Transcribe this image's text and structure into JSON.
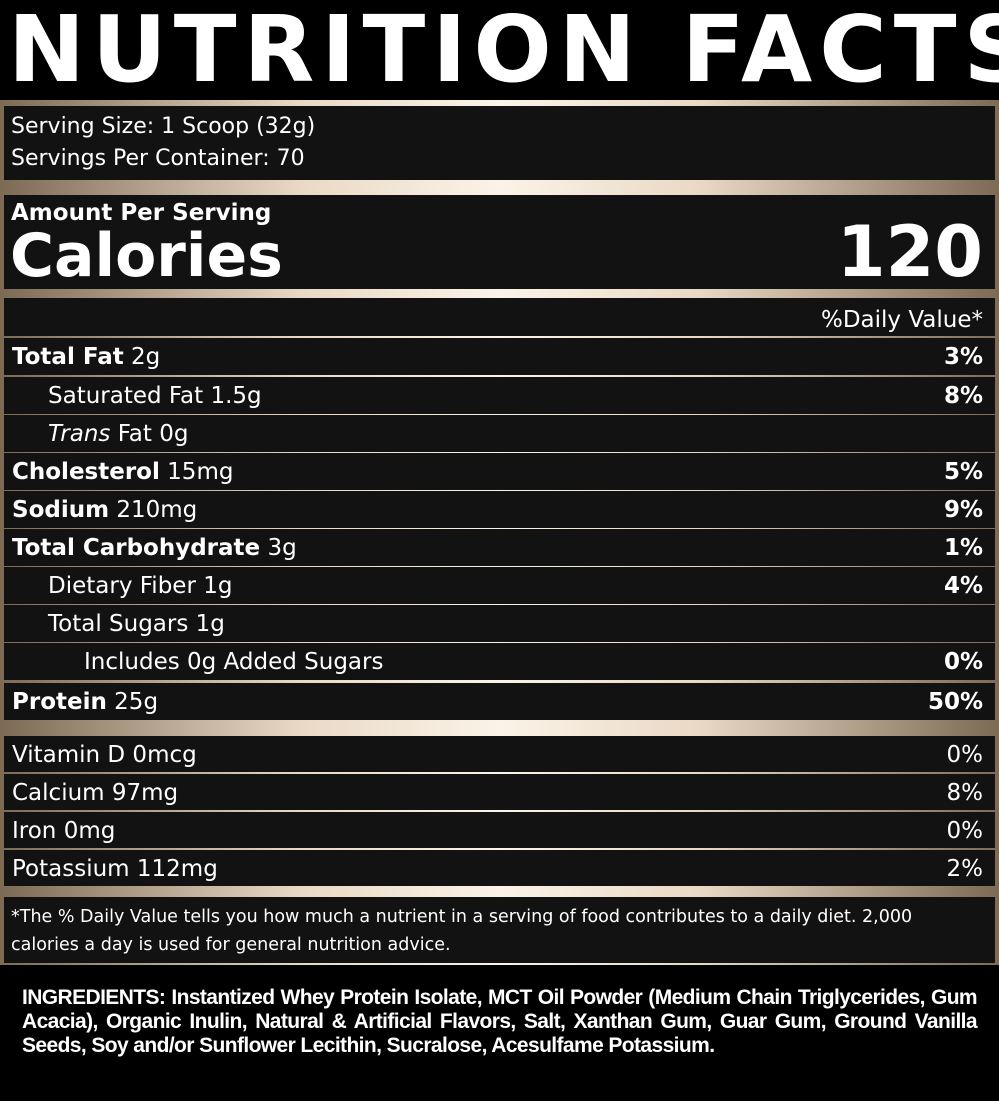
{
  "title": "NUTRITION FACTS",
  "serving": [
    "Serving Size: 1 Scoop (32g)",
    "Servings Per Container: 70"
  ],
  "amount_per_serving": "Amount Per Serving",
  "calories": {
    "label": "Calories",
    "value": "120"
  },
  "daily_value_header": "%Daily Value*",
  "nutrients": [
    {
      "name": "Total Fat",
      "amount": "2g",
      "dv": "3%",
      "level": 0,
      "bold": true
    },
    {
      "name": "Saturated Fat 1.5g",
      "dv": "8%",
      "level": 1
    },
    {
      "name": "Trans",
      "amount": "Fat 0g",
      "level": 1,
      "italic": true
    },
    {
      "name": "Cholesterol",
      "amount": "15mg",
      "dv": "5%",
      "level": 0,
      "bold": true
    },
    {
      "name": "Sodium",
      "amount": "210mg",
      "dv": "9%",
      "level": 0,
      "bold": true
    },
    {
      "name": "Total Carbohydrate",
      "amount": "3g",
      "dv": "1%",
      "level": 0,
      "bold": true
    },
    {
      "name": "Dietary Fiber 1g",
      "dv": "4%",
      "level": 1
    },
    {
      "name": "Total Sugars 1g",
      "level": 1
    },
    {
      "name": "Includes 0g Added Sugars",
      "dv": "0%",
      "level": 2
    },
    {
      "name": "Protein",
      "amount": "25g",
      "dv": "50%",
      "level": 0,
      "bold": true
    }
  ],
  "vitamins": [
    {
      "name": "Vitamin D 0mcg",
      "dv": "0%"
    },
    {
      "name": "Calcium 97mg",
      "dv": "8%"
    },
    {
      "name": "Iron 0mg",
      "dv": "0%"
    },
    {
      "name": "Potassium 112mg",
      "dv": "2%"
    }
  ],
  "footnote": "*The % Daily Value tells you how much a nutrient in a serving of food contributes to a daily diet. 2,000 calories a day is used for general nutrition advice.",
  "ingredients": "INGREDIENTS: Instantized Whey Protein Isolate, MCT Oil Powder (Medium Chain Triglycerides, Gum Acacia), Organic Inulin, Natural & Artificial Flavors, Salt, Xanthan Gum, Guar Gum, Ground Vanilla Seeds, Soy and/or Sunflower Lecithin, Sucralose, Acesulfame Potassium."
}
